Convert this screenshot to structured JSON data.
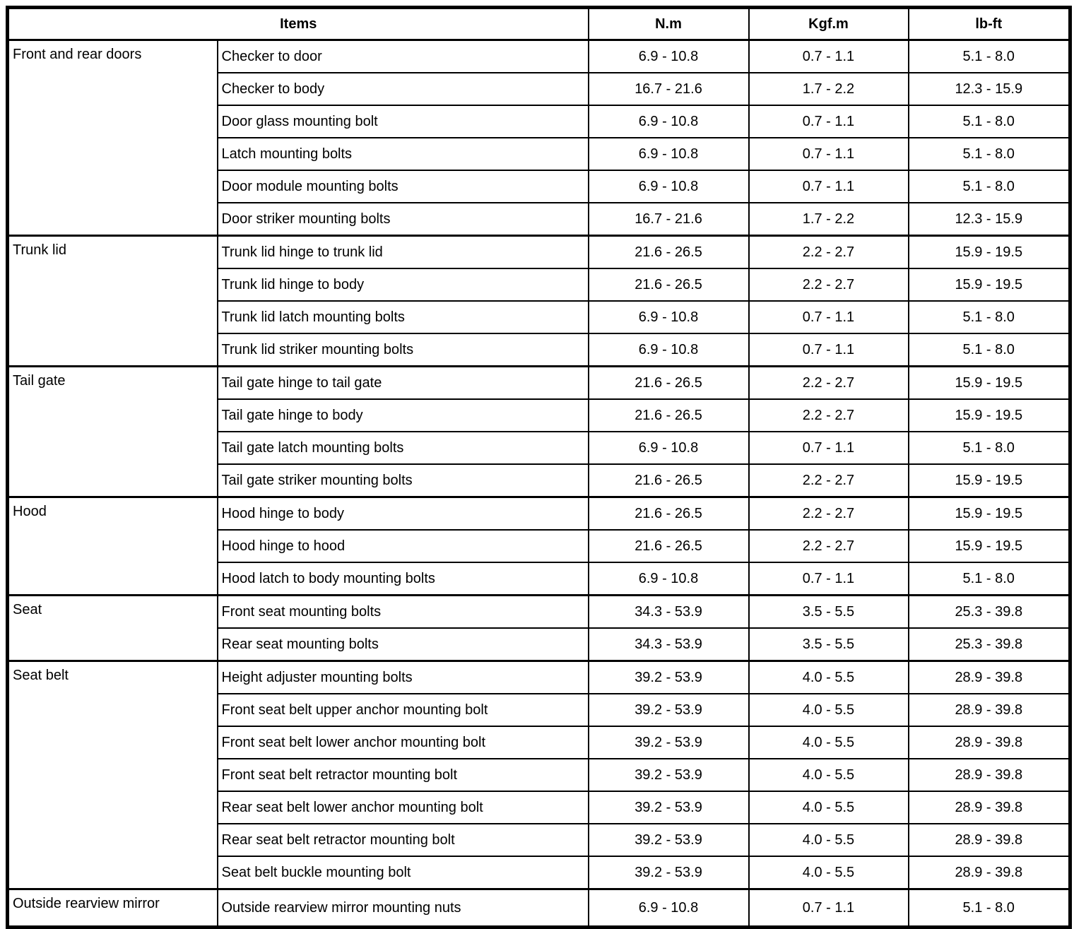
{
  "table": {
    "headers": {
      "items": "Items",
      "nm": "N.m",
      "kgfm": "Kgf.m",
      "lbft": "lb-ft"
    },
    "groups": [
      {
        "name": "Front and rear doors",
        "rows": [
          {
            "item": "Checker to door",
            "nm": "6.9 - 10.8",
            "kgfm": "0.7 - 1.1",
            "lbft": "5.1 - 8.0"
          },
          {
            "item": "Checker to body",
            "nm": "16.7 - 21.6",
            "kgfm": "1.7 - 2.2",
            "lbft": "12.3 - 15.9"
          },
          {
            "item": "Door glass mounting bolt",
            "nm": "6.9 - 10.8",
            "kgfm": "0.7 - 1.1",
            "lbft": "5.1 - 8.0"
          },
          {
            "item": "Latch mounting bolts",
            "nm": "6.9 - 10.8",
            "kgfm": "0.7 - 1.1",
            "lbft": "5.1 - 8.0"
          },
          {
            "item": "Door module mounting bolts",
            "nm": "6.9 - 10.8",
            "kgfm": "0.7 - 1.1",
            "lbft": "5.1 - 8.0"
          },
          {
            "item": "Door striker mounting bolts",
            "nm": "16.7 - 21.6",
            "kgfm": "1.7 - 2.2",
            "lbft": "12.3 - 15.9"
          }
        ]
      },
      {
        "name": "Trunk lid",
        "rows": [
          {
            "item": "Trunk lid hinge to trunk lid",
            "nm": "21.6 - 26.5",
            "kgfm": "2.2 - 2.7",
            "lbft": "15.9 - 19.5"
          },
          {
            "item": "Trunk lid hinge to body",
            "nm": "21.6 - 26.5",
            "kgfm": "2.2 - 2.7",
            "lbft": "15.9 - 19.5"
          },
          {
            "item": "Trunk lid latch mounting bolts",
            "nm": "6.9 - 10.8",
            "kgfm": "0.7 - 1.1",
            "lbft": "5.1 - 8.0"
          },
          {
            "item": "Trunk lid striker mounting bolts",
            "nm": "6.9 - 10.8",
            "kgfm": "0.7 - 1.1",
            "lbft": "5.1 - 8.0"
          }
        ]
      },
      {
        "name": "Tail gate",
        "rows": [
          {
            "item": "Tail gate hinge to tail gate",
            "nm": "21.6 - 26.5",
            "kgfm": "2.2 - 2.7",
            "lbft": "15.9 - 19.5"
          },
          {
            "item": "Tail gate hinge to body",
            "nm": "21.6 - 26.5",
            "kgfm": "2.2 - 2.7",
            "lbft": "15.9 - 19.5"
          },
          {
            "item": "Tail gate latch mounting bolts",
            "nm": "6.9 - 10.8",
            "kgfm": "0.7 - 1.1",
            "lbft": "5.1 - 8.0"
          },
          {
            "item": "Tail gate striker mounting bolts",
            "nm": "21.6 - 26.5",
            "kgfm": "2.2 - 2.7",
            "lbft": "15.9 - 19.5"
          }
        ]
      },
      {
        "name": "Hood",
        "rows": [
          {
            "item": "Hood hinge to body",
            "nm": "21.6 - 26.5",
            "kgfm": "2.2 - 2.7",
            "lbft": "15.9 - 19.5"
          },
          {
            "item": "Hood hinge to hood",
            "nm": "21.6 - 26.5",
            "kgfm": "2.2 - 2.7",
            "lbft": "15.9 - 19.5"
          },
          {
            "item": "Hood latch to body mounting bolts",
            "nm": "6.9 - 10.8",
            "kgfm": "0.7 - 1.1",
            "lbft": "5.1 - 8.0"
          }
        ]
      },
      {
        "name": "Seat",
        "rows": [
          {
            "item": "Front seat mounting bolts",
            "nm": "34.3 - 53.9",
            "kgfm": "3.5 - 5.5",
            "lbft": "25.3 - 39.8"
          },
          {
            "item": "Rear seat mounting bolts",
            "nm": "34.3 - 53.9",
            "kgfm": "3.5 - 5.5",
            "lbft": "25.3 - 39.8"
          }
        ]
      },
      {
        "name": "Seat belt",
        "rows": [
          {
            "item": "Height adjuster mounting bolts",
            "nm": "39.2 - 53.9",
            "kgfm": "4.0 - 5.5",
            "lbft": "28.9 - 39.8"
          },
          {
            "item": "Front seat belt upper anchor mounting bolt",
            "nm": "39.2 - 53.9",
            "kgfm": "4.0 - 5.5",
            "lbft": "28.9 - 39.8"
          },
          {
            "item": "Front seat belt lower anchor mounting bolt",
            "nm": "39.2 - 53.9",
            "kgfm": "4.0 - 5.5",
            "lbft": "28.9 - 39.8"
          },
          {
            "item": "Front seat belt retractor mounting bolt",
            "nm": "39.2 - 53.9",
            "kgfm": "4.0 - 5.5",
            "lbft": "28.9 - 39.8"
          },
          {
            "item": "Rear seat belt lower anchor mounting bolt",
            "nm": "39.2 - 53.9",
            "kgfm": "4.0 - 5.5",
            "lbft": "28.9 - 39.8"
          },
          {
            "item": "Rear seat belt retractor mounting bolt",
            "nm": "39.2 - 53.9",
            "kgfm": "4.0 - 5.5",
            "lbft": "28.9 - 39.8"
          },
          {
            "item": "Seat belt buckle mounting bolt",
            "nm": "39.2 - 53.9",
            "kgfm": "4.0 - 5.5",
            "lbft": "28.9 - 39.8"
          }
        ]
      },
      {
        "name": "Outside rearview mirror",
        "rows": [
          {
            "item": "Outside rearview mirror mounting nuts",
            "nm": "6.9 - 10.8",
            "kgfm": "0.7 - 1.1",
            "lbft": "5.1 - 8.0"
          }
        ]
      }
    ]
  }
}
